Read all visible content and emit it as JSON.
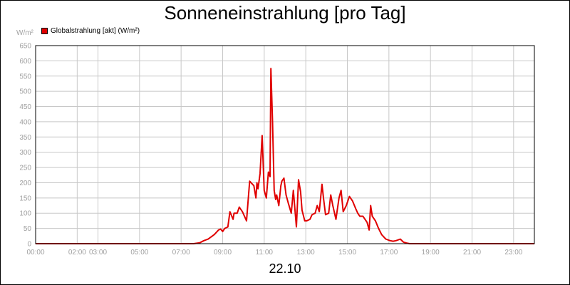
{
  "chart_data": {
    "type": "line",
    "title": "Sonneneinstrahlung [pro Tag]",
    "ylabel": "W/m²",
    "xlabel": "22.10",
    "ylim": [
      0,
      650
    ],
    "xlim": [
      0,
      24
    ],
    "yticks": [
      0,
      50,
      100,
      150,
      200,
      250,
      300,
      350,
      400,
      450,
      500,
      550,
      600,
      650
    ],
    "xticks": [
      {
        "x": 0,
        "label": "00:00"
      },
      {
        "x": 2,
        "label": "02:00"
      },
      {
        "x": 3,
        "label": "03:00"
      },
      {
        "x": 5,
        "label": "05:00"
      },
      {
        "x": 7,
        "label": "07:00"
      },
      {
        "x": 9,
        "label": "09:00"
      },
      {
        "x": 11,
        "label": "11:00"
      },
      {
        "x": 13,
        "label": "13:00"
      },
      {
        "x": 15,
        "label": "15:00"
      },
      {
        "x": 17,
        "label": "17:00"
      },
      {
        "x": 19,
        "label": "19:00"
      },
      {
        "x": 21,
        "label": "21:00"
      },
      {
        "x": 23,
        "label": "23:00"
      }
    ],
    "grid": true,
    "legend_position": "top-left",
    "colors": {
      "series": "#e00000",
      "grid": "#c8c8c8",
      "axis": "#000000",
      "tick": "#a0a0a0"
    },
    "series": [
      {
        "name": "Globalstrahlung [akt] (W/m²)",
        "x": [
          0,
          7.6,
          7.9,
          8.1,
          8.3,
          8.5,
          8.6,
          8.8,
          8.9,
          9.0,
          9.1,
          9.25,
          9.35,
          9.5,
          9.55,
          9.7,
          9.8,
          9.95,
          10.05,
          10.15,
          10.3,
          10.5,
          10.6,
          10.65,
          10.7,
          10.8,
          10.9,
          11.0,
          11.1,
          11.2,
          11.28,
          11.32,
          11.4,
          11.48,
          11.55,
          11.6,
          11.7,
          11.8,
          11.85,
          11.95,
          12.05,
          12.15,
          12.3,
          12.4,
          12.55,
          12.65,
          12.75,
          12.82,
          12.95,
          13.05,
          13.2,
          13.3,
          13.45,
          13.55,
          13.65,
          13.78,
          13.85,
          13.95,
          14.1,
          14.2,
          14.3,
          14.45,
          14.6,
          14.7,
          14.8,
          14.95,
          15.1,
          15.25,
          15.4,
          15.5,
          15.6,
          15.75,
          15.85,
          15.95,
          16.05,
          16.12,
          16.2,
          16.35,
          16.5,
          16.65,
          16.85,
          17.05,
          17.2,
          17.35,
          17.55,
          17.7,
          17.85,
          18.0,
          18.2,
          24
        ],
        "values": [
          0,
          0,
          3,
          10,
          15,
          25,
          30,
          45,
          48,
          40,
          50,
          55,
          105,
          80,
          100,
          100,
          120,
          105,
          90,
          75,
          205,
          190,
          150,
          200,
          180,
          230,
          355,
          175,
          150,
          235,
          220,
          575,
          400,
          175,
          145,
          160,
          125,
          190,
          205,
          215,
          160,
          135,
          100,
          175,
          55,
          210,
          170,
          110,
          75,
          75,
          80,
          95,
          100,
          125,
          105,
          195,
          150,
          95,
          100,
          160,
          125,
          80,
          150,
          175,
          105,
          125,
          155,
          140,
          115,
          100,
          90,
          90,
          80,
          70,
          45,
          125,
          90,
          75,
          50,
          30,
          15,
          10,
          8,
          10,
          15,
          5,
          2,
          0,
          0,
          0
        ]
      }
    ]
  }
}
